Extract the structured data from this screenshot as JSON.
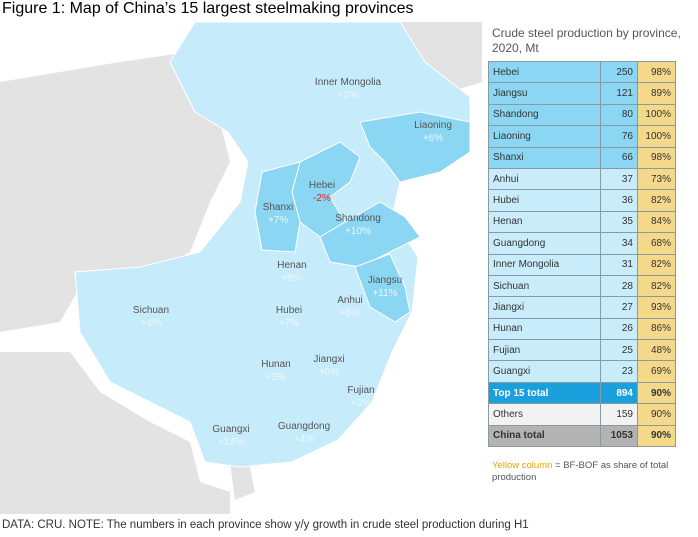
{
  "header": {
    "title": "Figure 1: Map of China’s 15 largest steelmaking provinces"
  },
  "map": {
    "provinces": [
      {
        "name": "Inner Mongolia",
        "growth": "+2%"
      },
      {
        "name": "Liaoning",
        "growth": "+6%"
      },
      {
        "name": "Hebei",
        "growth": "-2%"
      },
      {
        "name": "Shanxi",
        "growth": "+7%"
      },
      {
        "name": "Shandong",
        "growth": "+10%"
      },
      {
        "name": "Henan",
        "growth": "+5%"
      },
      {
        "name": "Jiangsu",
        "growth": "+11%"
      },
      {
        "name": "Anhui",
        "growth": "+5%"
      },
      {
        "name": "Sichuan",
        "growth": "+4%"
      },
      {
        "name": "Hubei",
        "growth": "+7%"
      },
      {
        "name": "Jiangxi",
        "growth": "+0%"
      },
      {
        "name": "Hunan",
        "growth": "+3%"
      },
      {
        "name": "Fujian",
        "growth": "+3%"
      },
      {
        "name": "Guangxi",
        "growth": "+14%"
      },
      {
        "name": "Guangdong",
        "growth": "+4%"
      }
    ]
  },
  "table": {
    "title": "Crude steel production by province, 2020, Mt",
    "rows": [
      [
        "Hebei",
        "250",
        "98%"
      ],
      [
        "Jiangsu",
        "121",
        "89%"
      ],
      [
        "Shandong",
        "80",
        "100%"
      ],
      [
        "Liaoning",
        "76",
        "100%"
      ],
      [
        "Shanxi",
        "66",
        "98%"
      ],
      [
        "Anhui",
        "37",
        "73%"
      ],
      [
        "Hubei",
        "36",
        "82%"
      ],
      [
        "Henan",
        "35",
        "84%"
      ],
      [
        "Guangdong",
        "34",
        "68%"
      ],
      [
        "Inner Mongolia",
        "31",
        "82%"
      ],
      [
        "Sichuan",
        "28",
        "82%"
      ],
      [
        "Jiangxi",
        "27",
        "93%"
      ],
      [
        "Hunan",
        "26",
        "86%"
      ],
      [
        "Fujian",
        "25",
        "48%"
      ],
      [
        "Guangxi",
        "23",
        "69%"
      ],
      [
        "Top 15 total",
        "894",
        "90%"
      ],
      [
        "Others",
        "159",
        "90%"
      ],
      [
        "China total",
        "1053",
        "90%"
      ]
    ],
    "note_highlight": "Yellow column",
    "note": "= BF-BOF as share of total production"
  },
  "footer": {
    "note": "DATA: CRU. NOTE: The numbers in each province show y/y growth in crude steel production during H1"
  }
}
